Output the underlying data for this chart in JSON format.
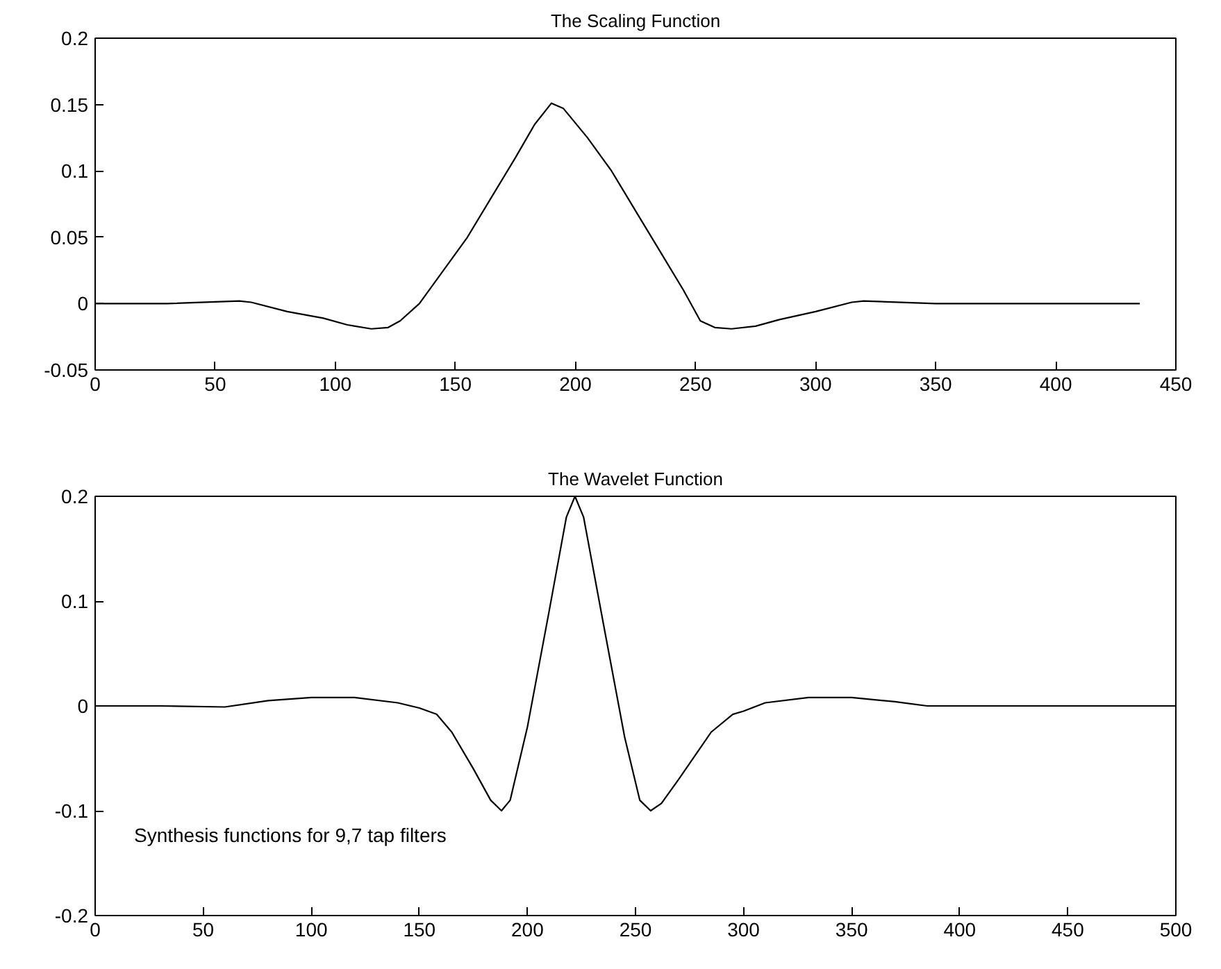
{
  "chart_data": [
    {
      "type": "line",
      "title": "The Scaling Function",
      "x": [
        0,
        30,
        60,
        65,
        80,
        95,
        105,
        115,
        122,
        127,
        135,
        145,
        155,
        165,
        175,
        183,
        190,
        195,
        205,
        215,
        225,
        235,
        245,
        252,
        258,
        265,
        275,
        285,
        300,
        315,
        320,
        350,
        380,
        435
      ],
      "series": [
        {
          "color": "#000000",
          "values": [
            0,
            0,
            0.002,
            0.001,
            -0.006,
            -0.011,
            -0.016,
            -0.019,
            -0.018,
            -0.013,
            0.0,
            0.025,
            0.05,
            0.08,
            0.11,
            0.135,
            0.151,
            0.147,
            0.125,
            0.1,
            0.07,
            0.04,
            0.01,
            -0.013,
            -0.018,
            -0.019,
            -0.017,
            -0.012,
            -0.006,
            0.001,
            0.002,
            0,
            0,
            0
          ]
        }
      ],
      "xlim": [
        0,
        450
      ],
      "xticks": [
        0,
        50,
        100,
        150,
        200,
        250,
        300,
        350,
        400,
        450
      ],
      "ylim": [
        -0.05,
        0.2
      ],
      "yticks": [
        -0.05,
        0,
        0.05,
        0.1,
        0.15,
        0.2
      ],
      "grid": false
    },
    {
      "type": "line",
      "title": "The Wavelet Function",
      "x": [
        0,
        30,
        60,
        80,
        100,
        120,
        140,
        150,
        158,
        165,
        175,
        183,
        188,
        192,
        200,
        210,
        218,
        222,
        226,
        235,
        245,
        252,
        257,
        262,
        270,
        280,
        285,
        295,
        300,
        310,
        330,
        350,
        370,
        385,
        420,
        500
      ],
      "series": [
        {
          "color": "#000000",
          "values": [
            0,
            0,
            -0.001,
            0.005,
            0.008,
            0.008,
            0.003,
            -0.002,
            -0.008,
            -0.025,
            -0.06,
            -0.09,
            -0.1,
            -0.09,
            -0.02,
            0.09,
            0.18,
            0.2,
            0.18,
            0.08,
            -0.03,
            -0.09,
            -0.1,
            -0.093,
            -0.07,
            -0.04,
            -0.025,
            -0.008,
            -0.005,
            0.003,
            0.008,
            0.008,
            0.004,
            0,
            0,
            0
          ]
        }
      ],
      "xlim": [
        0,
        500
      ],
      "xticks": [
        0,
        50,
        100,
        150,
        200,
        250,
        300,
        350,
        400,
        450,
        500
      ],
      "ylim": [
        -0.2,
        0.2
      ],
      "yticks": [
        -0.2,
        -0.1,
        0,
        0.1,
        0.2
      ],
      "grid": false,
      "annotations": [
        "Synthesis functions for 9,7 tap filters"
      ]
    }
  ]
}
